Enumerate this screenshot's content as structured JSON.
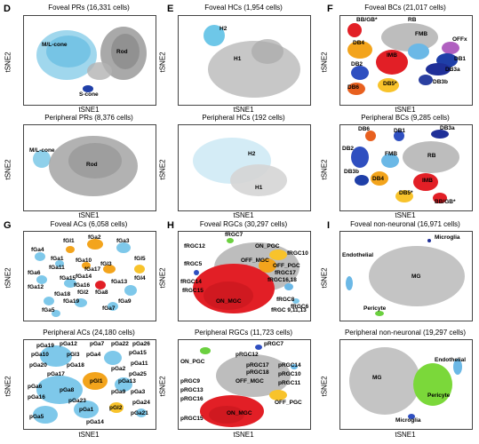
{
  "axis": {
    "x": "tSNE1",
    "y": "tSNE2"
  },
  "panels": [
    {
      "letter": "D",
      "title": "Foveal PRs (16,331 cells)",
      "labels": [
        "M/L-cone",
        "Rod",
        "S-cone"
      ]
    },
    {
      "letter": "",
      "title": "Peripheral PRs (8,376 cells)",
      "labels": [
        "M/L-cone",
        "Rod"
      ]
    },
    {
      "letter": "E",
      "title": "Foveal HCs (1,954 cells)",
      "labels": [
        "H2",
        "H1"
      ]
    },
    {
      "letter": "",
      "title": "Peripheral HCs (192 cells)",
      "labels": [
        "H2",
        "H1"
      ]
    },
    {
      "letter": "F",
      "title": "Foveal BCs (21,017 cells)",
      "labels": [
        "BB/GB*",
        "RB",
        "FMB",
        "OFFx",
        "DB4",
        "IMB",
        "DB1",
        "DB2",
        "DB3a",
        "DB5*",
        "DB6",
        "DB3b"
      ]
    },
    {
      "letter": "",
      "title": "Peripheral BCs (9,285 cells)",
      "labels": [
        "DB6",
        "DB1",
        "DB3a",
        "DB2",
        "FMB",
        "RB",
        "DB3b",
        "IMB",
        "DB4",
        "DB5*",
        "BB/GB*"
      ]
    },
    {
      "letter": "G",
      "title": "Foveal ACs (6,058 cells)",
      "labels": [
        "fGa4",
        "fGl1",
        "fGa2",
        "fGa3",
        "fGa1",
        "fGa6",
        "fGa11",
        "fGa10",
        "fGa17",
        "fGa12",
        "fGl3",
        "fGa15",
        "fGa16",
        "fGa13",
        "fGl2",
        "fGa8",
        "fGa18",
        "fGa14",
        "fGa9",
        "fGa19",
        "fGl5",
        "fGl4",
        "fGa7",
        "fGa5"
      ]
    },
    {
      "letter": "",
      "title": "Peripheral ACs (24,180 cells)",
      "labels": [
        "pGa19",
        "pGa12",
        "pGa7",
        "pGa22",
        "pGa26",
        "pGa15",
        "pGa10",
        "pGl3",
        "pGa4",
        "pGa11",
        "pGa20",
        "pGa18",
        "pGa2",
        "pGa17",
        "pGa25",
        "pGl1",
        "pGa13",
        "pGa6",
        "pGa8",
        "pGa9",
        "pGa16",
        "pGa3",
        "pGa23",
        "pGa24",
        "pGa1",
        "pGl2",
        "pGa21",
        "pGa5",
        "pGa14"
      ]
    },
    {
      "letter": "H",
      "title": "Foveal RGCs (30,297 cells)",
      "labels": [
        "fRGC7",
        "fRGC12",
        "ON_PGC",
        "fRGC5",
        "OFF_MGC",
        "OFF_PGC",
        "fRGC10",
        "fRGC14",
        "fRGC16,18",
        "ON_MGC",
        "fRGC8",
        "fRGC6",
        "fRGC 9,11,13",
        "fRGC17",
        "fRGC15"
      ]
    },
    {
      "letter": "",
      "title": "Peripheral RGCs (11,723 cells)",
      "labels": [
        "pRGC7",
        "ON_PGC",
        "pRGC12",
        "pRGC17",
        "pRGC14",
        "pRGC18",
        "pRGC10",
        "pRGC11",
        "pRGC9",
        "OFF_MGC",
        "pRGC13",
        "pRGC16",
        "OFF_PGC",
        "ON_MGC",
        "pRGC15"
      ]
    },
    {
      "letter": "I",
      "title": "Foveal non-neuronal (16,971 cells)",
      "labels": [
        "Microglia",
        "Endothelial",
        "MG",
        "Pericyte"
      ]
    },
    {
      "letter": "",
      "title": "Peripheral non-neuronal (19,297 cells)",
      "labels": [
        "Endothelial",
        "MG",
        "Pericyte",
        "Microglia"
      ]
    }
  ]
}
